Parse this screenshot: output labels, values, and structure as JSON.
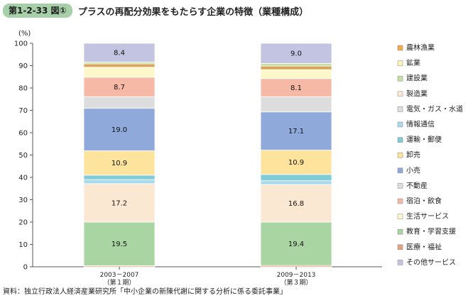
{
  "figure": {
    "badge": "第1-2-33 図①",
    "title": "プラスの再配分効果をもたらす企業の特徴（業種構成）",
    "source": "資料：独立行政法人経済産業研究所「中小企業の新陳代謝に関する分析に係る委託事業」"
  },
  "chart_data": {
    "type": "bar",
    "stacked": true,
    "ylabel": "(%)",
    "ylim": [
      0,
      100
    ],
    "yticks": [
      0,
      10,
      20,
      30,
      40,
      50,
      60,
      70,
      80,
      90,
      100
    ],
    "grid": false,
    "legend_position": "right",
    "categories": [
      [
        "2003－2007",
        "（第１期）"
      ],
      [
        "2009－2013",
        "（第３期）"
      ]
    ],
    "series": [
      {
        "name": "医療・福祉",
        "color": "#e2a27a",
        "values": [
          0.5,
          0.6
        ]
      },
      {
        "name": "教育・学習支援",
        "color": "#a8d5a2",
        "values": [
          19.5,
          19.4
        ]
      },
      {
        "name": "生活サービス",
        "color": "#fbe8d2",
        "values": [
          17.2,
          16.8
        ]
      },
      {
        "name": "宿泊・飲食",
        "color": "#a9d9ea",
        "values": [
          1.8,
          1.7
        ]
      },
      {
        "name": "不動産",
        "color": "#7fcbd6",
        "values": [
          2.0,
          2.8
        ]
      },
      {
        "name": "小売",
        "color": "#fde39c",
        "values": [
          10.9,
          10.9
        ]
      },
      {
        "name": "卸売",
        "color": "#8fa9db",
        "values": [
          19.0,
          17.1
        ]
      },
      {
        "name": "運輸・郵便",
        "color": "#dddddd",
        "values": [
          5.2,
          6.8
        ]
      },
      {
        "name": "情報通信",
        "color": "#f6b9a6",
        "values": [
          8.7,
          8.1
        ]
      },
      {
        "name": "電気・ガス・水道",
        "color": "#fdf8c9",
        "values": [
          4.5,
          4.0
        ]
      },
      {
        "name": "製造業",
        "color": "#d9a35b",
        "values": [
          1.5,
          1.6
        ]
      },
      {
        "name": "建設業",
        "color": "#c7e0a2",
        "values": [
          0.8,
          1.2
        ]
      },
      {
        "name": "鉱業",
        "color": "#f0d487",
        "values": [
          0.0,
          0.0
        ]
      },
      {
        "name": "農林漁業",
        "color": "#f3a94b",
        "values": [
          0.0,
          0.0
        ]
      },
      {
        "name": "その他サービス",
        "color": "#c2c4e2",
        "values": [
          8.4,
          9.0
        ]
      }
    ],
    "data_labels": [
      {
        "series": "教育・学習支援",
        "labels": [
          "19.5",
          "19.4"
        ]
      },
      {
        "series": "生活サービス",
        "labels": [
          "17.2",
          "16.8"
        ]
      },
      {
        "series": "小売",
        "labels": [
          "10.9",
          "10.9"
        ]
      },
      {
        "series": "卸売",
        "labels": [
          "19.0",
          "17.1"
        ]
      },
      {
        "series": "情報通信",
        "labels": [
          "8.7",
          "8.1"
        ]
      },
      {
        "series": "その他サービス",
        "labels": [
          "8.4",
          "9.0"
        ]
      }
    ],
    "legend": [
      {
        "label": "農林漁業",
        "color": "#f3a94b"
      },
      {
        "label": "鉱業",
        "color": "#fdf5b5"
      },
      {
        "label": "建設業",
        "color": "#c7e0a2"
      },
      {
        "label": "製造業",
        "color": "#fbe8d2"
      },
      {
        "label": "電気・ガス・水道",
        "color": "#dddddd"
      },
      {
        "label": "情報通信",
        "color": "#a9d9ea"
      },
      {
        "label": "運輸・郵便",
        "color": "#7fcbd6"
      },
      {
        "label": "卸売",
        "color": "#fde39c"
      },
      {
        "label": "小売",
        "color": "#8fa9db"
      },
      {
        "label": "不動産",
        "color": "#dddddd"
      },
      {
        "label": "宿泊・飲食",
        "color": "#f6b9a6"
      },
      {
        "label": "生活サービス",
        "color": "#fdf8c9"
      },
      {
        "label": "教育・学習支援",
        "color": "#a8d5a2"
      },
      {
        "label": "医療・福祉",
        "color": "#e2a27a"
      },
      {
        "label": "その他サービス",
        "color": "#c2c4e2"
      }
    ]
  }
}
